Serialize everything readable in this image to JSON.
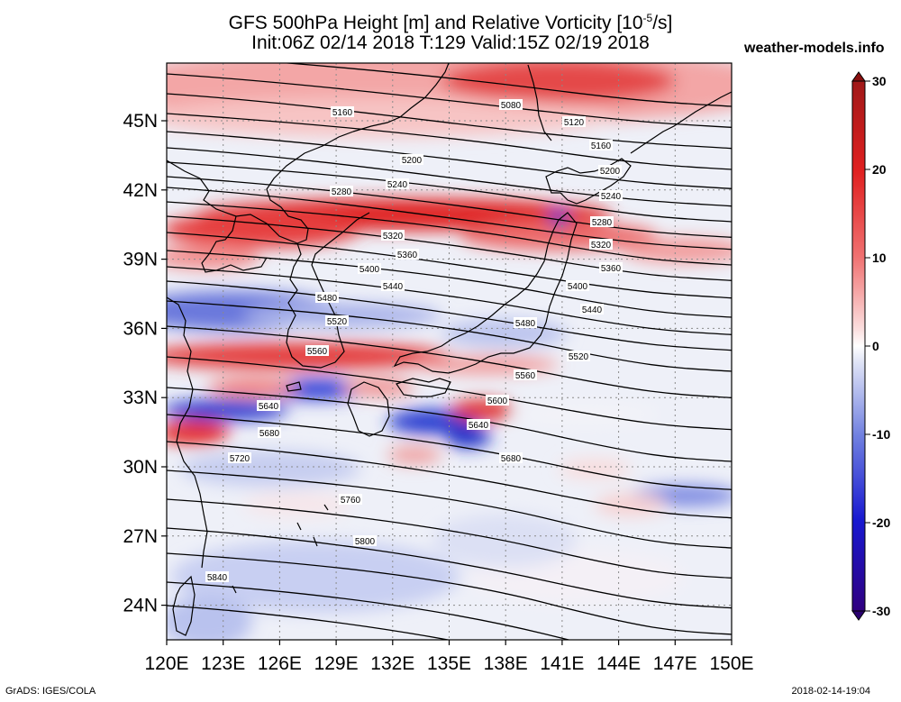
{
  "title": {
    "line1": "GFS 500hPa Height [m] and Relative Vorticity [10",
    "line1_exp": "-5",
    "line1_end": "/s]",
    "line2": "Init:06Z 02/14 2018 T:129 Valid:15Z 02/19 2018"
  },
  "site": "weather-models.info",
  "footer": {
    "left": "GrADS: IGES/COLA",
    "right": "2018-02-14-19:04"
  },
  "map": {
    "lon_range": [
      120,
      150
    ],
    "lat_range": [
      22.5,
      47.5
    ],
    "lat_ticks": [
      "45N",
      "42N",
      "39N",
      "36N",
      "33N",
      "30N",
      "27N",
      "24N"
    ],
    "lat_values": [
      45,
      42,
      39,
      36,
      33,
      30,
      27,
      24
    ],
    "lon_ticks": [
      "120E",
      "123E",
      "126E",
      "129E",
      "132E",
      "135E",
      "138E",
      "141E",
      "144E",
      "147E",
      "150E"
    ],
    "lon_values": [
      120,
      123,
      126,
      129,
      132,
      135,
      138,
      141,
      144,
      147,
      150
    ],
    "contour_labels": [
      "5080",
      "5120",
      "5160",
      "5160",
      "5200",
      "5200",
      "5240",
      "5240",
      "5280",
      "5280",
      "5320",
      "5320",
      "5360",
      "5360",
      "5400",
      "5400",
      "5440",
      "5440",
      "5480",
      "5480",
      "5520",
      "5520",
      "5560",
      "5560",
      "5600",
      "5640",
      "5640",
      "5680",
      "5680",
      "5720",
      "5760",
      "5800",
      "5840"
    ]
  },
  "colorbar": {
    "ticks": [
      "30",
      "20",
      "10",
      "0",
      "-10",
      "-20",
      "-30"
    ],
    "values": [
      30,
      20,
      10,
      0,
      -10,
      -20,
      -30
    ],
    "colors": [
      "#2b0080",
      "#1010d0",
      "#4a6ad8",
      "#9fb0e8",
      "#e6e9f6",
      "#ffffff",
      "#f8dada",
      "#f09090",
      "#e84040",
      "#d01818",
      "#b02020"
    ]
  }
}
